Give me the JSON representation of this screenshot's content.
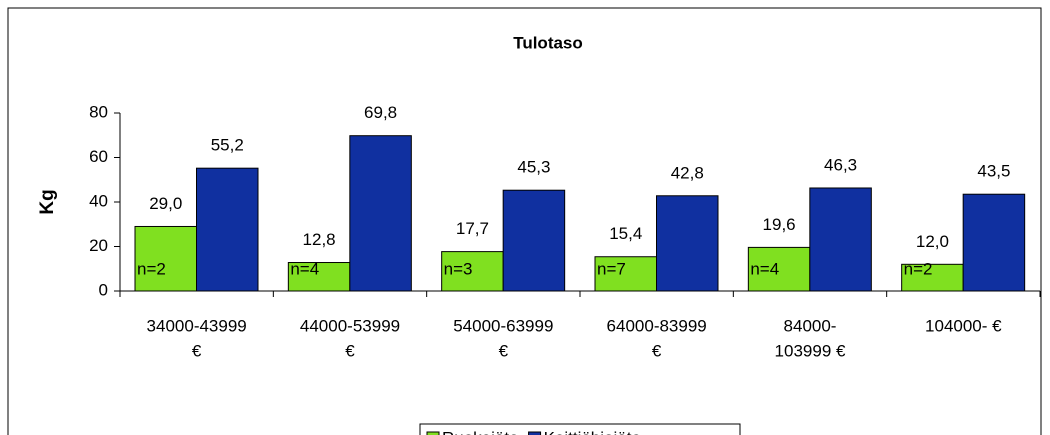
{
  "chart_data": {
    "type": "bar",
    "title": "Tulotaso",
    "y_label": "Kg",
    "categories": [
      [
        "34000-43999",
        "€"
      ],
      [
        "44000-53999",
        "€"
      ],
      [
        "54000-63999",
        "€"
      ],
      [
        "64000-83999",
        "€"
      ],
      [
        "84000-",
        "103999 €"
      ],
      [
        "104000- €"
      ]
    ],
    "series": [
      {
        "name": "Ruokajäte",
        "color": "#80e020",
        "values": [
          29.0,
          12.8,
          17.7,
          15.4,
          19.6,
          12.0
        ],
        "value_labels": [
          "29,0",
          "12,8",
          "17,7",
          "15,4",
          "19,6",
          "12,0"
        ],
        "annotations": [
          "n=2",
          "n=4",
          "n=3",
          "n=7",
          "n=4",
          "n=2"
        ]
      },
      {
        "name": "Keittiöbiojäte",
        "color": "#1030a0",
        "values": [
          55.2,
          69.8,
          45.3,
          42.8,
          46.3,
          43.5
        ],
        "value_labels": [
          "55,2",
          "69,8",
          "45,3",
          "42,8",
          "46,3",
          "43,5"
        ]
      }
    ],
    "ylim": [
      0,
      80
    ],
    "yticks": [
      0,
      20,
      40,
      60,
      80
    ]
  }
}
